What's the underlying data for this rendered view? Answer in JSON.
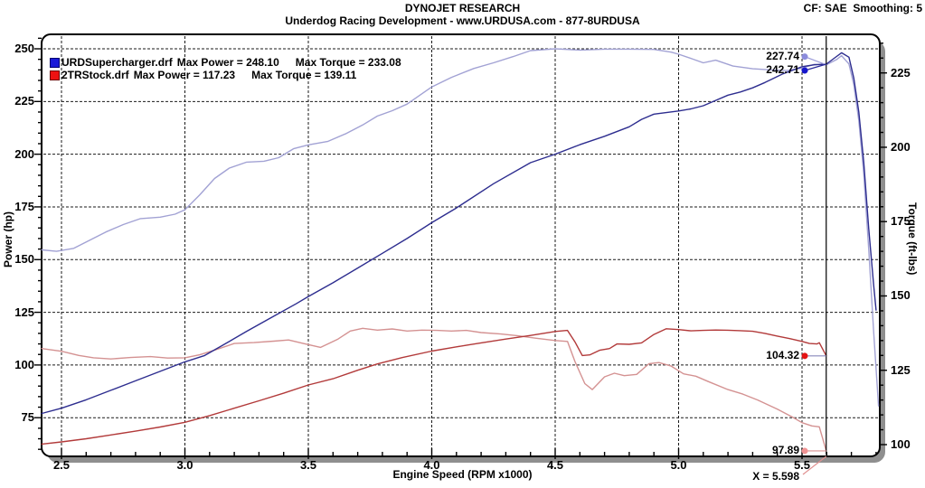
{
  "header": {
    "title": "DYNOJET RESEARCH",
    "subtitle": "Underdog Racing Development - www.URDUSA.com - 877-8URDUSA",
    "correction": "CF: SAE  Smoothing: 5"
  },
  "legend": {
    "rows": [
      {
        "file": "URDSupercharger.drf",
        "power": "Max Power = 248.10",
        "torque": "Max Torque = 233.08",
        "fill": "#1a1ad8",
        "border": "#000070"
      },
      {
        "file": "2TRStock.drf",
        "power": "Max Power = 117.23",
        "torque": "Max Torque = 139.11",
        "fill": "#ee1212",
        "border": "#700000"
      }
    ]
  },
  "chart_data": {
    "type": "line",
    "title": "DYNOJET RESEARCH",
    "x_axis": {
      "title": "Engine Speed (RPM x1000)",
      "tick_labels": [
        "2.5",
        "3.0",
        "3.5",
        "4.0",
        "4.5",
        "5.0",
        "5.5"
      ],
      "minor_step": 0.1,
      "minor_max": 5.8,
      "range": [
        2.42,
        5.82
      ],
      "grid": true
    },
    "power_axis": {
      "title": "Power (hp)",
      "tick_labels": [
        250,
        225,
        200,
        175,
        150,
        125,
        100,
        75
      ],
      "minor_step": 5,
      "minor_range": [
        60,
        255
      ],
      "grid": true
    },
    "torque_axis": {
      "title": "Torque (ft-lbs)",
      "tick_labels": [
        225,
        200,
        175,
        150,
        125,
        100
      ],
      "minor_step": 5,
      "minor_range": [
        100,
        235
      ],
      "grid": false
    },
    "cursor": {
      "x": 5.598,
      "label": "X = 5.598",
      "leader_color": "#e09090"
    },
    "markers": [
      {
        "label": "227.74",
        "value": 227.74,
        "axis": "torque",
        "dot_color": "#8c8cdc",
        "line_color": "#9a9ad8",
        "label_dy": -9
      },
      {
        "label": "242.71",
        "value": 242.71,
        "axis": "power",
        "dot_color": "#1616cc",
        "line_color": "#2a2a9a",
        "label_dy": 7
      },
      {
        "label": "104.32",
        "value": 104.32,
        "axis": "power",
        "dot_color": "#e41414",
        "line_color": "#8888bb",
        "label_dy": 0
      },
      {
        "label": "97.89",
        "value": 97.89,
        "axis": "torque",
        "dot_color": "#f09494",
        "line_color": "#d89090",
        "label_dy": 0
      }
    ],
    "series": [
      {
        "id": "stock-torque",
        "name": "2TRStock.drf Torque",
        "axis": "torque",
        "color": "#d49292",
        "max": 139.11,
        "points": [
          [
            2.42,
            132.3
          ],
          [
            2.5,
            131.4
          ],
          [
            2.57,
            130
          ],
          [
            2.63,
            129.2
          ],
          [
            2.7,
            128.8
          ],
          [
            2.78,
            129.3
          ],
          [
            2.86,
            129.6
          ],
          [
            2.93,
            129.1
          ],
          [
            3.0,
            129.2
          ],
          [
            3.06,
            130.2
          ],
          [
            3.12,
            131.8
          ],
          [
            3.2,
            134
          ],
          [
            3.28,
            134.3
          ],
          [
            3.36,
            134.8
          ],
          [
            3.42,
            135.2
          ],
          [
            3.48,
            134
          ],
          [
            3.55,
            132.7
          ],
          [
            3.62,
            135.5
          ],
          [
            3.67,
            138.2
          ],
          [
            3.72,
            139.1
          ],
          [
            3.78,
            138.5
          ],
          [
            3.84,
            138.9
          ],
          [
            3.9,
            138.2
          ],
          [
            3.96,
            138.5
          ],
          [
            4.02,
            138.4
          ],
          [
            4.08,
            138.2
          ],
          [
            4.14,
            138.4
          ],
          [
            4.2,
            137.7
          ],
          [
            4.28,
            137.2
          ],
          [
            4.35,
            136.6
          ],
          [
            4.42,
            135.8
          ],
          [
            4.5,
            135
          ],
          [
            4.55,
            134.7
          ],
          [
            4.58,
            128
          ],
          [
            4.62,
            120.5
          ],
          [
            4.65,
            118.5
          ],
          [
            4.7,
            122.8
          ],
          [
            4.74,
            124
          ],
          [
            4.78,
            123.2
          ],
          [
            4.83,
            123.6
          ],
          [
            4.88,
            127.2
          ],
          [
            4.92,
            127.6
          ],
          [
            4.97,
            126.4
          ],
          [
            5.02,
            123.8
          ],
          [
            5.07,
            123
          ],
          [
            5.12,
            121.2
          ],
          [
            5.2,
            118.5
          ],
          [
            5.26,
            117
          ],
          [
            5.32,
            115
          ],
          [
            5.4,
            111.9
          ],
          [
            5.46,
            109.3
          ],
          [
            5.5,
            107.4
          ],
          [
            5.54,
            106.3
          ],
          [
            5.57,
            106
          ],
          [
            5.598,
            97.89
          ]
        ]
      },
      {
        "id": "stock-power",
        "name": "2TRStock.drf Power",
        "axis": "power",
        "color": "#b23a3a",
        "max": 117.23,
        "points": [
          [
            2.42,
            62.5
          ],
          [
            2.5,
            63.5
          ],
          [
            2.6,
            65
          ],
          [
            2.7,
            66.8
          ],
          [
            2.8,
            68.6
          ],
          [
            2.9,
            70.6
          ],
          [
            3.0,
            72.8
          ],
          [
            3.1,
            76
          ],
          [
            3.2,
            79.5
          ],
          [
            3.3,
            83
          ],
          [
            3.4,
            86.6
          ],
          [
            3.5,
            90.5
          ],
          [
            3.6,
            93.5
          ],
          [
            3.7,
            97.5
          ],
          [
            3.78,
            100.5
          ],
          [
            3.88,
            103.5
          ],
          [
            4.0,
            106.6
          ],
          [
            4.1,
            108.6
          ],
          [
            4.2,
            110.5
          ],
          [
            4.3,
            112.3
          ],
          [
            4.4,
            114
          ],
          [
            4.5,
            115.9
          ],
          [
            4.55,
            116.4
          ],
          [
            4.58,
            111
          ],
          [
            4.61,
            104.5
          ],
          [
            4.64,
            104.8
          ],
          [
            4.68,
            107
          ],
          [
            4.72,
            107.8
          ],
          [
            4.75,
            110
          ],
          [
            4.8,
            109.8
          ],
          [
            4.85,
            110.5
          ],
          [
            4.9,
            114.5
          ],
          [
            4.95,
            117.2
          ],
          [
            5.0,
            116.8
          ],
          [
            5.05,
            116.2
          ],
          [
            5.1,
            116.4
          ],
          [
            5.15,
            116.6
          ],
          [
            5.2,
            116.5
          ],
          [
            5.25,
            116.3
          ],
          [
            5.3,
            116
          ],
          [
            5.35,
            115
          ],
          [
            5.4,
            113.7
          ],
          [
            5.45,
            112.5
          ],
          [
            5.5,
            111.2
          ],
          [
            5.53,
            110.2
          ],
          [
            5.56,
            110
          ],
          [
            5.57,
            110.6
          ],
          [
            5.598,
            104.32
          ]
        ]
      },
      {
        "id": "urd-torque",
        "name": "URDSupercharger.drf Torque",
        "axis": "torque",
        "color": "#a2a2d4",
        "max": 233.08,
        "points": [
          [
            2.42,
            165.5
          ],
          [
            2.48,
            165
          ],
          [
            2.55,
            166
          ],
          [
            2.62,
            169
          ],
          [
            2.68,
            171.5
          ],
          [
            2.75,
            174
          ],
          [
            2.82,
            176
          ],
          [
            2.9,
            176.5
          ],
          [
            2.96,
            177.5
          ],
          [
            3.0,
            179
          ],
          [
            3.06,
            184
          ],
          [
            3.12,
            189.5
          ],
          [
            3.18,
            193
          ],
          [
            3.25,
            195
          ],
          [
            3.32,
            195.3
          ],
          [
            3.38,
            196.5
          ],
          [
            3.44,
            199.5
          ],
          [
            3.5,
            200.8
          ],
          [
            3.58,
            202
          ],
          [
            3.65,
            204.5
          ],
          [
            3.72,
            207.5
          ],
          [
            3.78,
            210.5
          ],
          [
            3.84,
            212.3
          ],
          [
            3.9,
            214.5
          ],
          [
            4.0,
            220.3
          ],
          [
            4.08,
            223.5
          ],
          [
            4.17,
            226.5
          ],
          [
            4.25,
            228.4
          ],
          [
            4.33,
            230.5
          ],
          [
            4.4,
            232.5
          ],
          [
            4.5,
            233.1
          ],
          [
            4.6,
            232.7
          ],
          [
            4.7,
            233
          ],
          [
            4.8,
            233
          ],
          [
            4.9,
            232.9
          ],
          [
            4.97,
            232
          ],
          [
            5.0,
            231.3
          ],
          [
            5.06,
            229.6
          ],
          [
            5.1,
            228.4
          ],
          [
            5.15,
            229.3
          ],
          [
            5.22,
            227.3
          ],
          [
            5.3,
            226.4
          ],
          [
            5.38,
            226
          ],
          [
            5.44,
            225.8
          ],
          [
            5.5,
            226.6
          ],
          [
            5.55,
            227.9
          ],
          [
            5.598,
            227.74
          ],
          [
            5.64,
            229.5
          ],
          [
            5.66,
            230.8
          ],
          [
            5.69,
            228
          ],
          [
            5.71,
            221
          ],
          [
            5.73,
            209
          ],
          [
            5.75,
            191
          ],
          [
            5.77,
            166
          ],
          [
            5.79,
            138
          ],
          [
            5.81,
            113
          ]
        ]
      },
      {
        "id": "urd-power",
        "name": "URDSupercharger.drf Power",
        "axis": "power",
        "color": "#2d2d8f",
        "max": 248.1,
        "points": [
          [
            2.42,
            77
          ],
          [
            2.5,
            79.5
          ],
          [
            2.6,
            83.5
          ],
          [
            2.7,
            88
          ],
          [
            2.8,
            92.5
          ],
          [
            2.9,
            97
          ],
          [
            3.0,
            101.5
          ],
          [
            3.08,
            104.5
          ],
          [
            3.17,
            110.5
          ],
          [
            3.25,
            116
          ],
          [
            3.35,
            122.5
          ],
          [
            3.45,
            129
          ],
          [
            3.5,
            132.5
          ],
          [
            3.6,
            139
          ],
          [
            3.7,
            146
          ],
          [
            3.8,
            153
          ],
          [
            3.9,
            160
          ],
          [
            4.0,
            167.5
          ],
          [
            4.1,
            174.5
          ],
          [
            4.25,
            186
          ],
          [
            4.4,
            196
          ],
          [
            4.5,
            200
          ],
          [
            4.6,
            204.5
          ],
          [
            4.7,
            208.5
          ],
          [
            4.8,
            213
          ],
          [
            4.85,
            216.5
          ],
          [
            4.9,
            219
          ],
          [
            5.0,
            220.5
          ],
          [
            5.05,
            221.5
          ],
          [
            5.1,
            223
          ],
          [
            5.15,
            225.5
          ],
          [
            5.2,
            228
          ],
          [
            5.25,
            229.5
          ],
          [
            5.3,
            231.5
          ],
          [
            5.35,
            234
          ],
          [
            5.42,
            238
          ],
          [
            5.5,
            241.5
          ],
          [
            5.55,
            242.4
          ],
          [
            5.598,
            242.71
          ],
          [
            5.63,
            245.5
          ],
          [
            5.66,
            248.1
          ],
          [
            5.69,
            246
          ],
          [
            5.71,
            236
          ],
          [
            5.73,
            220
          ],
          [
            5.75,
            196
          ],
          [
            5.77,
            165
          ],
          [
            5.79,
            138
          ],
          [
            5.8,
            126
          ]
        ]
      }
    ],
    "grid_color": "#1a1a1a",
    "frame_shadow_color": "#8f8f8f"
  }
}
